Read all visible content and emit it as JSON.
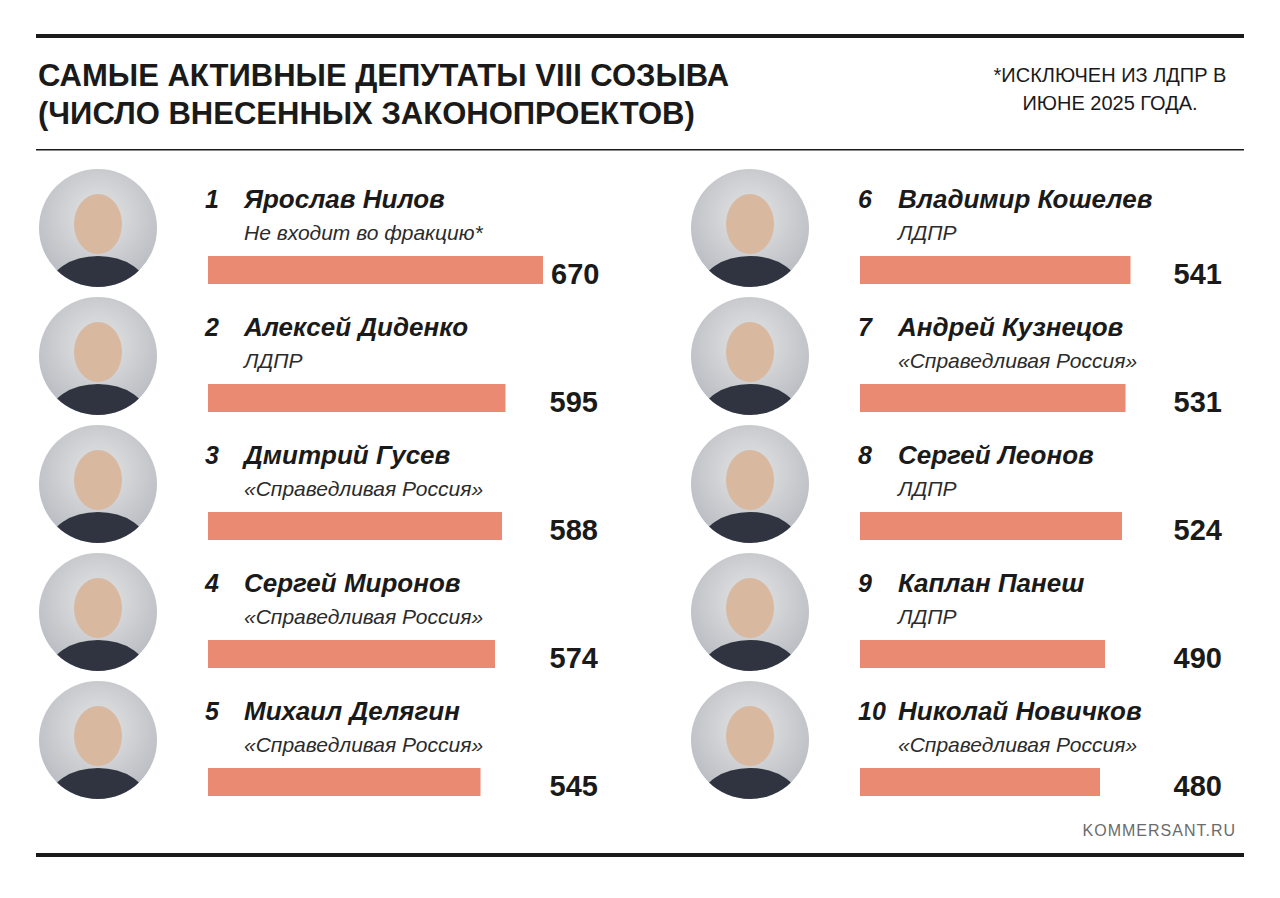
{
  "chart_data": {
    "type": "bar",
    "orientation": "horizontal",
    "title": "САМЫЕ АКТИВНЫЕ ДЕПУТАТЫ VIII СОЗЫВА",
    "subtitle": "(ЧИСЛО ВНЕСЕННЫХ ЗАКОНОПРОЕКТОВ)",
    "annotation": "*ИСКЛЮЧЕН ИЗ ЛДПР В ИЮНЕ 2025 ГОДА.",
    "source": "KOMMERSANT.RU",
    "ranks": [
      1,
      2,
      3,
      4,
      5,
      6,
      7,
      8,
      9,
      10
    ],
    "categories": [
      "Ярослав Нилов",
      "Алексей Диденко",
      "Дмитрий Гусев",
      "Сергей Миронов",
      "Михаил Делягин",
      "Владимир Кошелев",
      "Андрей Кузнецов",
      "Сергей Леонов",
      "Каплан Панеш",
      "Николай Новичков"
    ],
    "parties": [
      "Не входит во фракцию*",
      "ЛДПР",
      "«Справедливая Россия»",
      "«Справедливая Россия»",
      "«Справедливая Россия»",
      "ЛДПР",
      "«Справедливая Россия»",
      "ЛДПР",
      "ЛДПР",
      "«Справедливая Россия»"
    ],
    "values": [
      670,
      595,
      588,
      574,
      545,
      541,
      531,
      524,
      490,
      480
    ],
    "color": "#ea8a73",
    "xlim": [
      0,
      670
    ],
    "data_labels": true,
    "tick_labels": false,
    "grid": false
  }
}
